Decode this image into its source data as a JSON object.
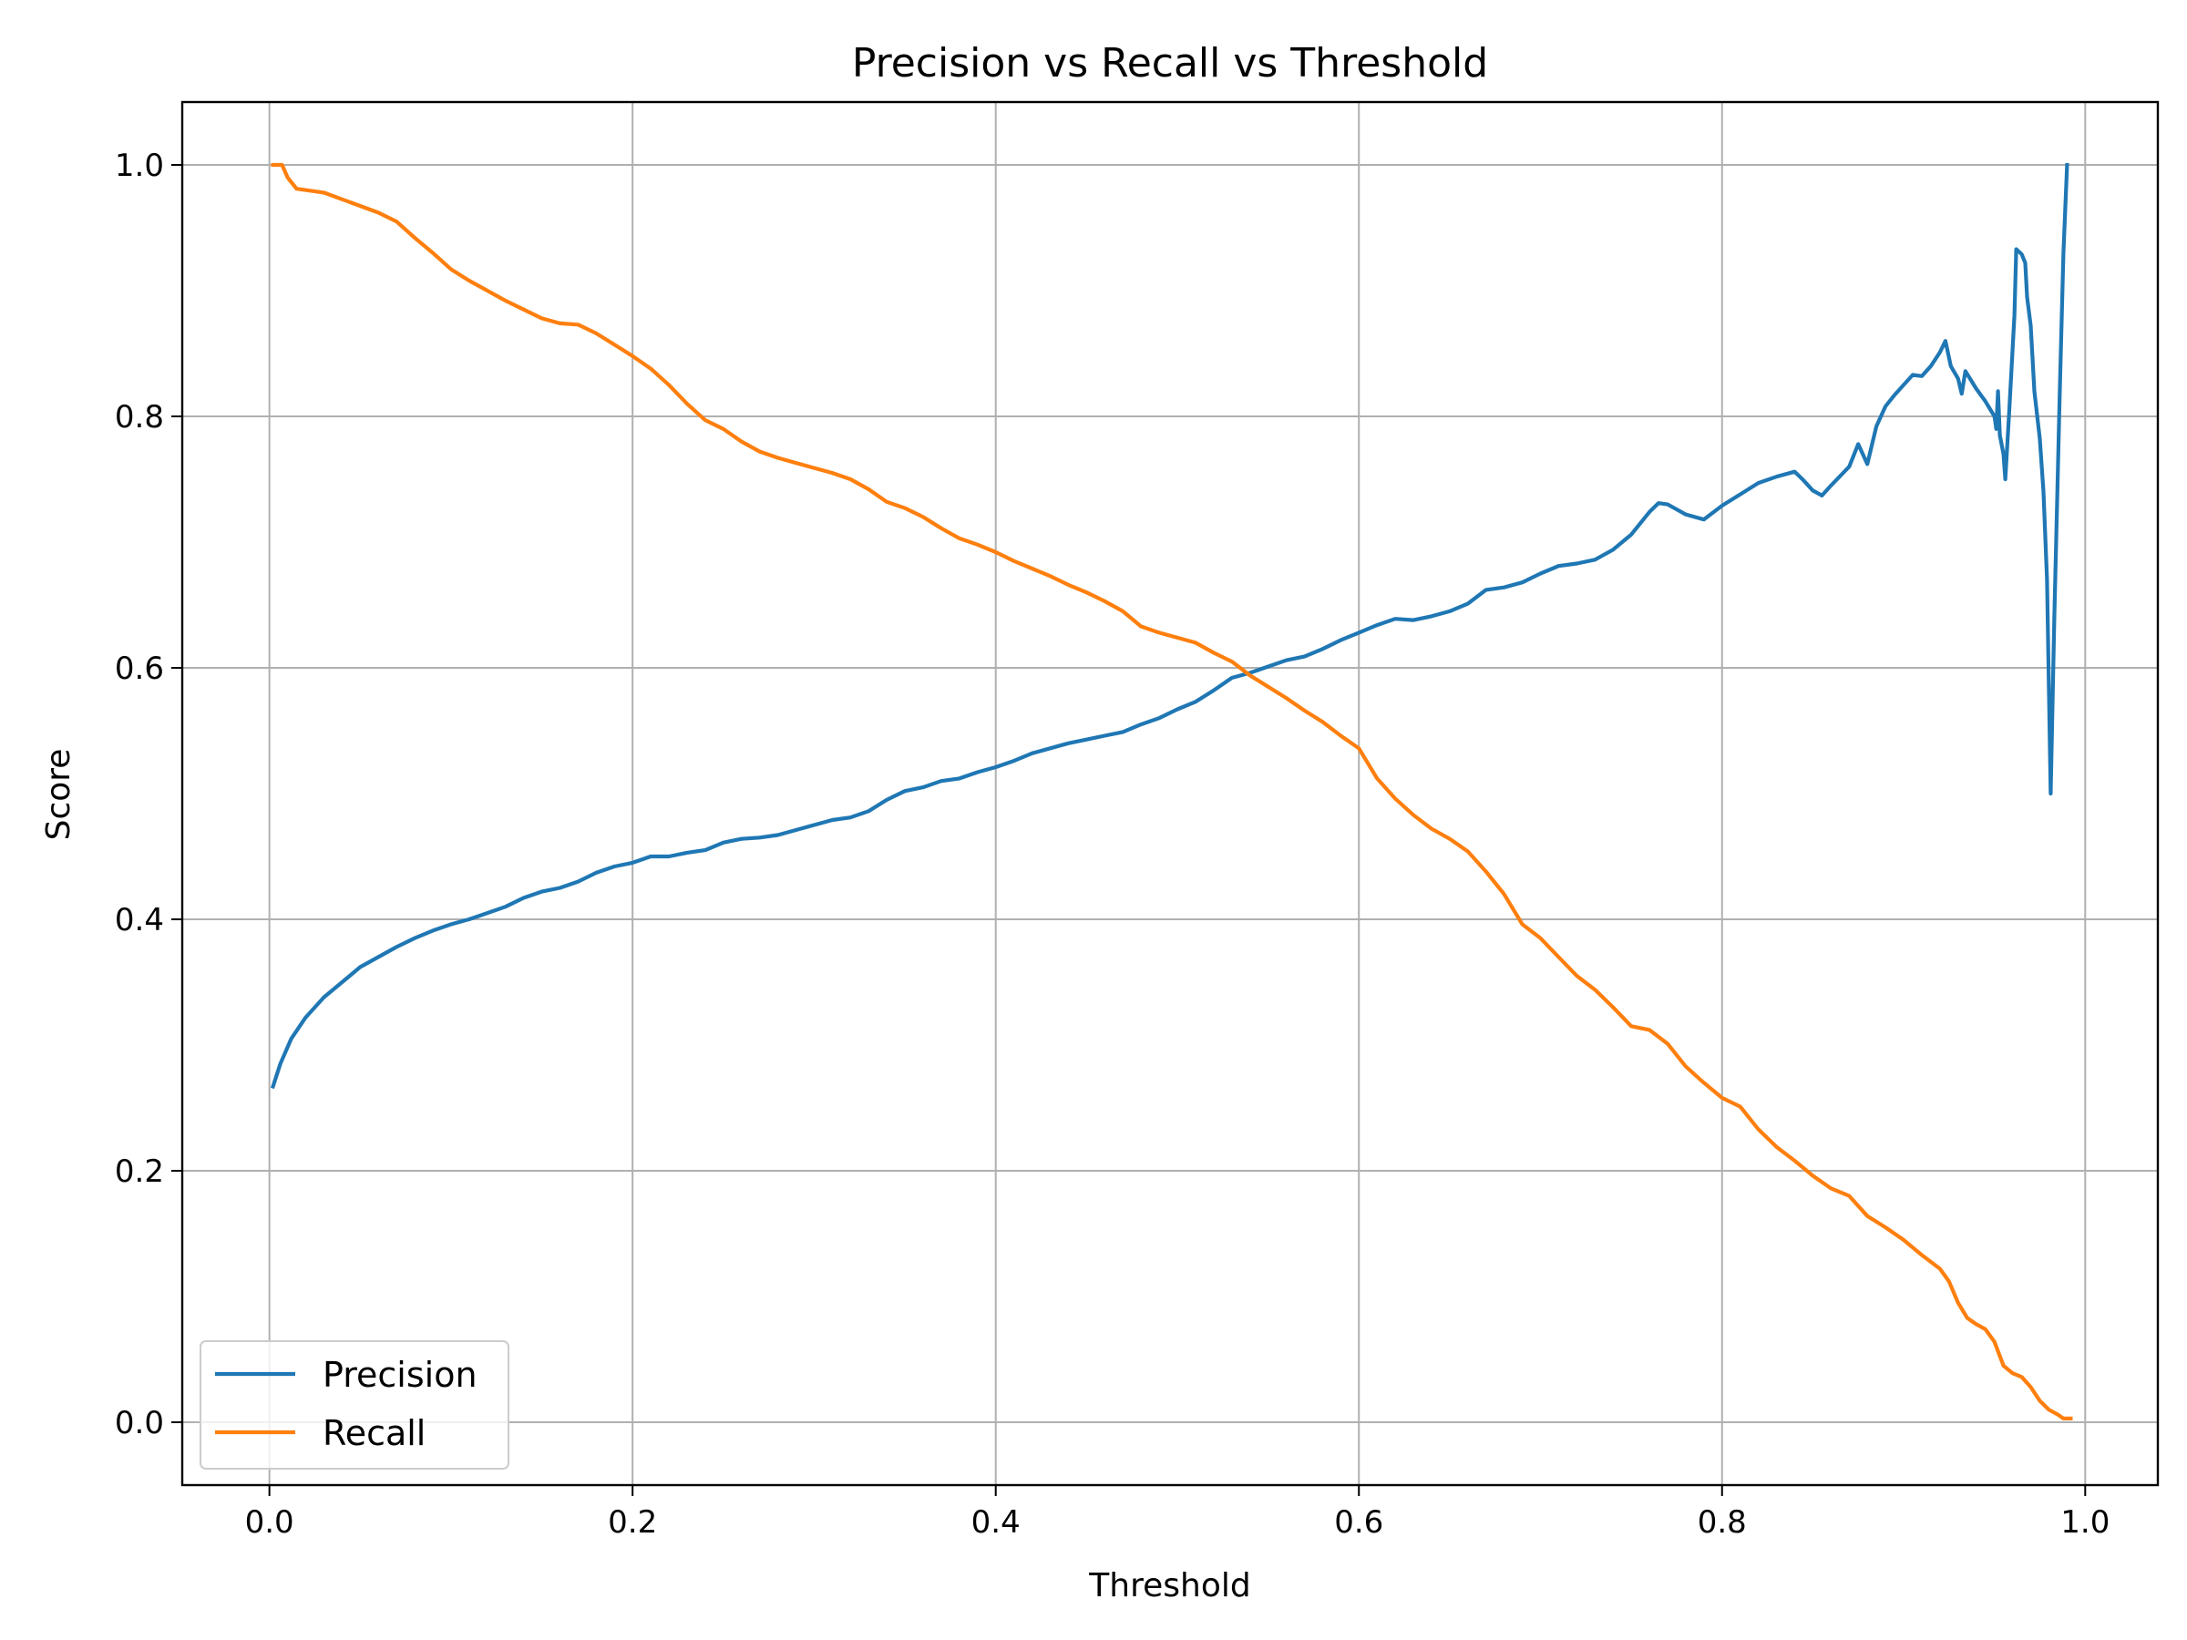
{
  "chart_data": {
    "type": "line",
    "title": "Precision vs Recall vs Threshold",
    "xlabel": "Threshold",
    "ylabel": "Score",
    "xlim": [
      -0.048,
      1.04
    ],
    "ylim": [
      -0.05,
      1.05
    ],
    "xticks": [
      0.0,
      0.2,
      0.4,
      0.6,
      0.8,
      1.0
    ],
    "xtick_labels": [
      "0.0",
      "0.2",
      "0.4",
      "0.6",
      "0.8",
      "1.0"
    ],
    "yticks": [
      0.0,
      0.2,
      0.4,
      0.6,
      0.8,
      1.0
    ],
    "ytick_labels": [
      "0.0",
      "0.2",
      "0.4",
      "0.6",
      "0.8",
      "1.0"
    ],
    "grid": true,
    "legend": {
      "position": "lower-left"
    },
    "series": [
      {
        "name": "Precision",
        "color": "#1f77b4",
        "points": [
          [
            0.002,
            0.267
          ],
          [
            0.006,
            0.285
          ],
          [
            0.012,
            0.305
          ],
          [
            0.02,
            0.322
          ],
          [
            0.03,
            0.338
          ],
          [
            0.04,
            0.35
          ],
          [
            0.05,
            0.362
          ],
          [
            0.06,
            0.37
          ],
          [
            0.07,
            0.378
          ],
          [
            0.08,
            0.385
          ],
          [
            0.09,
            0.391
          ],
          [
            0.1,
            0.396
          ],
          [
            0.11,
            0.4
          ],
          [
            0.12,
            0.405
          ],
          [
            0.13,
            0.41
          ],
          [
            0.14,
            0.417
          ],
          [
            0.15,
            0.422
          ],
          [
            0.16,
            0.425
          ],
          [
            0.17,
            0.43
          ],
          [
            0.18,
            0.437
          ],
          [
            0.19,
            0.442
          ],
          [
            0.2,
            0.445
          ],
          [
            0.21,
            0.45
          ],
          [
            0.22,
            0.45
          ],
          [
            0.23,
            0.453
          ],
          [
            0.24,
            0.455
          ],
          [
            0.25,
            0.461
          ],
          [
            0.26,
            0.464
          ],
          [
            0.27,
            0.465
          ],
          [
            0.28,
            0.467
          ],
          [
            0.29,
            0.471
          ],
          [
            0.3,
            0.475
          ],
          [
            0.31,
            0.479
          ],
          [
            0.32,
            0.481
          ],
          [
            0.33,
            0.486
          ],
          [
            0.34,
            0.495
          ],
          [
            0.35,
            0.502
          ],
          [
            0.36,
            0.505
          ],
          [
            0.37,
            0.51
          ],
          [
            0.38,
            0.512
          ],
          [
            0.39,
            0.517
          ],
          [
            0.4,
            0.521
          ],
          [
            0.41,
            0.526
          ],
          [
            0.42,
            0.532
          ],
          [
            0.43,
            0.536
          ],
          [
            0.44,
            0.54
          ],
          [
            0.45,
            0.543
          ],
          [
            0.46,
            0.546
          ],
          [
            0.47,
            0.549
          ],
          [
            0.48,
            0.555
          ],
          [
            0.49,
            0.56
          ],
          [
            0.5,
            0.567
          ],
          [
            0.51,
            0.573
          ],
          [
            0.52,
            0.582
          ],
          [
            0.53,
            0.592
          ],
          [
            0.54,
            0.596
          ],
          [
            0.55,
            0.601
          ],
          [
            0.56,
            0.606
          ],
          [
            0.57,
            0.609
          ],
          [
            0.58,
            0.615
          ],
          [
            0.59,
            0.622
          ],
          [
            0.6,
            0.628
          ],
          [
            0.61,
            0.634
          ],
          [
            0.62,
            0.639
          ],
          [
            0.63,
            0.638
          ],
          [
            0.64,
            0.641
          ],
          [
            0.65,
            0.645
          ],
          [
            0.66,
            0.651
          ],
          [
            0.67,
            0.662
          ],
          [
            0.68,
            0.664
          ],
          [
            0.69,
            0.668
          ],
          [
            0.7,
            0.675
          ],
          [
            0.71,
            0.681
          ],
          [
            0.72,
            0.683
          ],
          [
            0.73,
            0.686
          ],
          [
            0.74,
            0.694
          ],
          [
            0.75,
            0.706
          ],
          [
            0.76,
            0.724
          ],
          [
            0.765,
            0.731
          ],
          [
            0.77,
            0.73
          ],
          [
            0.775,
            0.726
          ],
          [
            0.78,
            0.722
          ],
          [
            0.79,
            0.718
          ],
          [
            0.8,
            0.729
          ],
          [
            0.81,
            0.738
          ],
          [
            0.82,
            0.747
          ],
          [
            0.83,
            0.752
          ],
          [
            0.84,
            0.756
          ],
          [
            0.845,
            0.749
          ],
          [
            0.85,
            0.741
          ],
          [
            0.855,
            0.737
          ],
          [
            0.86,
            0.745
          ],
          [
            0.87,
            0.76
          ],
          [
            0.875,
            0.778
          ],
          [
            0.88,
            0.762
          ],
          [
            0.885,
            0.792
          ],
          [
            0.89,
            0.808
          ],
          [
            0.895,
            0.817
          ],
          [
            0.9,
            0.825
          ],
          [
            0.905,
            0.833
          ],
          [
            0.91,
            0.832
          ],
          [
            0.915,
            0.84
          ],
          [
            0.92,
            0.851
          ],
          [
            0.923,
            0.86
          ],
          [
            0.926,
            0.84
          ],
          [
            0.93,
            0.83
          ],
          [
            0.932,
            0.818
          ],
          [
            0.934,
            0.836
          ],
          [
            0.94,
            0.822
          ],
          [
            0.945,
            0.812
          ],
          [
            0.95,
            0.8
          ],
          [
            0.951,
            0.79
          ],
          [
            0.952,
            0.82
          ],
          [
            0.953,
            0.785
          ],
          [
            0.955,
            0.77
          ],
          [
            0.956,
            0.75
          ],
          [
            0.958,
            0.8
          ],
          [
            0.961,
            0.88
          ],
          [
            0.962,
            0.933
          ],
          [
            0.965,
            0.929
          ],
          [
            0.967,
            0.922
          ],
          [
            0.968,
            0.895
          ],
          [
            0.97,
            0.872
          ],
          [
            0.972,
            0.82
          ],
          [
            0.975,
            0.782
          ],
          [
            0.977,
            0.74
          ],
          [
            0.979,
            0.67
          ],
          [
            0.981,
            0.5
          ],
          [
            0.983,
            0.64
          ],
          [
            0.986,
            0.82
          ],
          [
            0.988,
            0.93
          ],
          [
            0.99,
            1.0
          ]
        ]
      },
      {
        "name": "Recall",
        "color": "#ff7f0e",
        "points": [
          [
            0.002,
            1.0
          ],
          [
            0.007,
            1.0
          ],
          [
            0.01,
            0.99
          ],
          [
            0.015,
            0.981
          ],
          [
            0.03,
            0.978
          ],
          [
            0.045,
            0.97
          ],
          [
            0.06,
            0.962
          ],
          [
            0.07,
            0.955
          ],
          [
            0.08,
            0.942
          ],
          [
            0.09,
            0.93
          ],
          [
            0.1,
            0.917
          ],
          [
            0.11,
            0.908
          ],
          [
            0.12,
            0.9
          ],
          [
            0.13,
            0.892
          ],
          [
            0.14,
            0.885
          ],
          [
            0.15,
            0.878
          ],
          [
            0.16,
            0.874
          ],
          [
            0.17,
            0.873
          ],
          [
            0.18,
            0.866
          ],
          [
            0.19,
            0.857
          ],
          [
            0.2,
            0.848
          ],
          [
            0.21,
            0.838
          ],
          [
            0.22,
            0.825
          ],
          [
            0.23,
            0.81
          ],
          [
            0.24,
            0.797
          ],
          [
            0.25,
            0.79
          ],
          [
            0.26,
            0.78
          ],
          [
            0.27,
            0.772
          ],
          [
            0.28,
            0.767
          ],
          [
            0.29,
            0.763
          ],
          [
            0.3,
            0.759
          ],
          [
            0.31,
            0.755
          ],
          [
            0.32,
            0.75
          ],
          [
            0.33,
            0.742
          ],
          [
            0.34,
            0.732
          ],
          [
            0.35,
            0.727
          ],
          [
            0.36,
            0.72
          ],
          [
            0.37,
            0.711
          ],
          [
            0.38,
            0.703
          ],
          [
            0.39,
            0.698
          ],
          [
            0.4,
            0.692
          ],
          [
            0.41,
            0.685
          ],
          [
            0.42,
            0.679
          ],
          [
            0.43,
            0.673
          ],
          [
            0.44,
            0.666
          ],
          [
            0.45,
            0.66
          ],
          [
            0.46,
            0.653
          ],
          [
            0.47,
            0.645
          ],
          [
            0.48,
            0.633
          ],
          [
            0.49,
            0.628
          ],
          [
            0.5,
            0.624
          ],
          [
            0.51,
            0.62
          ],
          [
            0.52,
            0.612
          ],
          [
            0.53,
            0.605
          ],
          [
            0.54,
            0.594
          ],
          [
            0.55,
            0.585
          ],
          [
            0.56,
            0.576
          ],
          [
            0.57,
            0.566
          ],
          [
            0.58,
            0.557
          ],
          [
            0.59,
            0.546
          ],
          [
            0.6,
            0.536
          ],
          [
            0.61,
            0.512
          ],
          [
            0.62,
            0.496
          ],
          [
            0.63,
            0.483
          ],
          [
            0.64,
            0.472
          ],
          [
            0.65,
            0.464
          ],
          [
            0.66,
            0.454
          ],
          [
            0.67,
            0.438
          ],
          [
            0.68,
            0.42
          ],
          [
            0.69,
            0.396
          ],
          [
            0.7,
            0.385
          ],
          [
            0.71,
            0.37
          ],
          [
            0.72,
            0.355
          ],
          [
            0.73,
            0.344
          ],
          [
            0.74,
            0.33
          ],
          [
            0.75,
            0.315
          ],
          [
            0.76,
            0.312
          ],
          [
            0.77,
            0.301
          ],
          [
            0.78,
            0.283
          ],
          [
            0.79,
            0.27
          ],
          [
            0.8,
            0.258
          ],
          [
            0.81,
            0.251
          ],
          [
            0.82,
            0.233
          ],
          [
            0.83,
            0.219
          ],
          [
            0.84,
            0.208
          ],
          [
            0.85,
            0.196
          ],
          [
            0.86,
            0.186
          ],
          [
            0.87,
            0.18
          ],
          [
            0.88,
            0.164
          ],
          [
            0.89,
            0.155
          ],
          [
            0.9,
            0.145
          ],
          [
            0.91,
            0.133
          ],
          [
            0.92,
            0.122
          ],
          [
            0.925,
            0.112
          ],
          [
            0.93,
            0.095
          ],
          [
            0.935,
            0.083
          ],
          [
            0.94,
            0.078
          ],
          [
            0.945,
            0.074
          ],
          [
            0.95,
            0.064
          ],
          [
            0.955,
            0.045
          ],
          [
            0.96,
            0.039
          ],
          [
            0.965,
            0.036
          ],
          [
            0.97,
            0.028
          ],
          [
            0.975,
            0.017
          ],
          [
            0.98,
            0.01
          ],
          [
            0.985,
            0.006
          ],
          [
            0.988,
            0.003
          ],
          [
            0.992,
            0.003
          ]
        ]
      }
    ]
  }
}
